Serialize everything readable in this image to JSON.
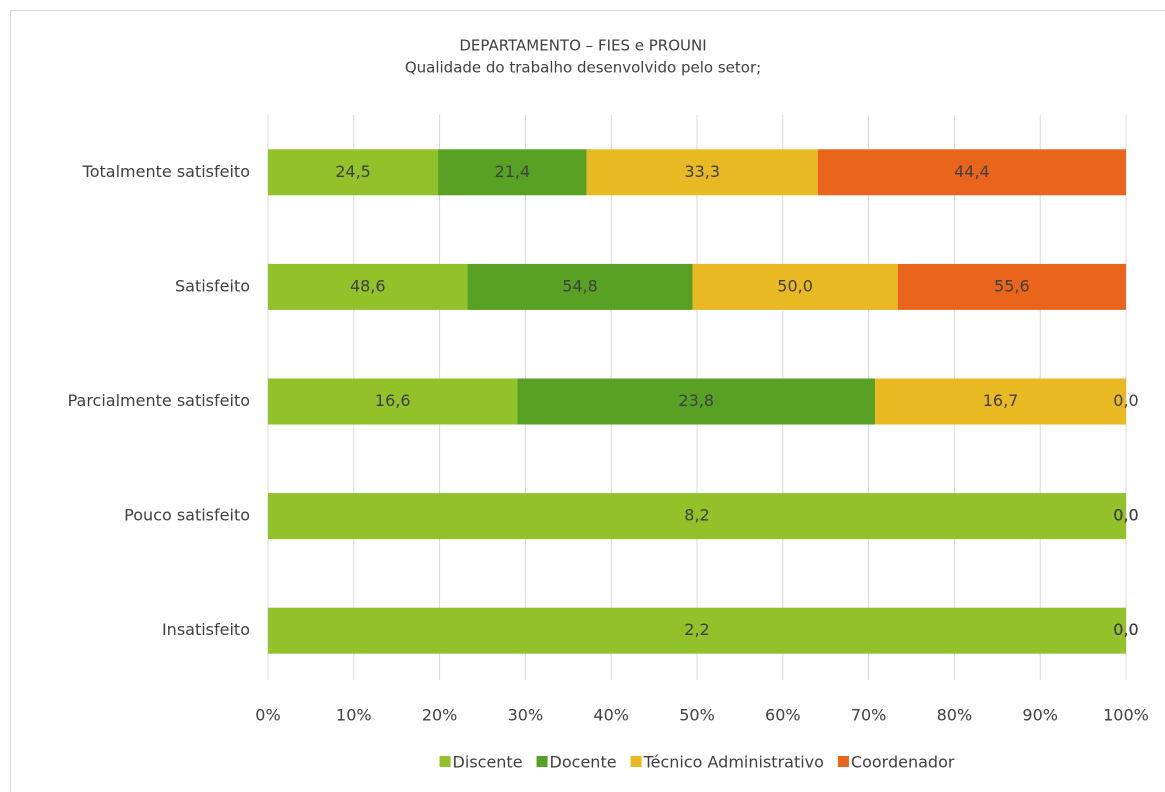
{
  "chart_data": {
    "type": "bar",
    "orientation": "horizontal",
    "stacked": "percent",
    "title": "DEPARTAMENTO – FIES e PROUNI",
    "subtitle": "Qualidade do trabalho desenvolvido pelo setor;",
    "categories": [
      "Totalmente satisfeito",
      "Satisfeito",
      "Parcialmente satisfeito",
      "Pouco satisfeito",
      "Insatisfeito"
    ],
    "series": [
      {
        "name": "Discente",
        "color": "#92c12a",
        "values": [
          24.5,
          48.6,
          16.6,
          8.2,
          2.2
        ],
        "value_labels": [
          "24,5",
          "48,6",
          "16,6",
          "8,2",
          "2,2"
        ]
      },
      {
        "name": "Docente",
        "color": "#58a125",
        "values": [
          21.4,
          54.8,
          23.8,
          0.0,
          0.0
        ],
        "value_labels": [
          "21,4",
          "54,8",
          "23,8",
          "0,0",
          "0,0"
        ]
      },
      {
        "name": "Técnico Administrativo",
        "color": "#e8b923",
        "values": [
          33.3,
          50.0,
          16.7,
          0.0,
          0.0
        ],
        "value_labels": [
          "33,3",
          "50,0",
          "16,7",
          "0,0",
          "0,0"
        ]
      },
      {
        "name": "Coordenador",
        "color": "#e8651b",
        "values": [
          44.4,
          55.6,
          0.0,
          0.0,
          0.0
        ],
        "value_labels": [
          "44,4",
          "55,6",
          "0,0",
          "0,0",
          "0,0"
        ]
      }
    ],
    "xlim": [
      0,
      100
    ],
    "xticks": [
      {
        "value": 0,
        "label": "0%"
      },
      {
        "value": 10,
        "label": "10%"
      },
      {
        "value": 20,
        "label": "20%"
      },
      {
        "value": 30,
        "label": "30%"
      },
      {
        "value": 40,
        "label": "40%"
      },
      {
        "value": 50,
        "label": "50%"
      },
      {
        "value": 60,
        "label": "60%"
      },
      {
        "value": 70,
        "label": "70%"
      },
      {
        "value": 80,
        "label": "80%"
      },
      {
        "value": 90,
        "label": "90%"
      },
      {
        "value": 100,
        "label": "100%"
      }
    ],
    "grid": true,
    "legend": "bottom"
  }
}
